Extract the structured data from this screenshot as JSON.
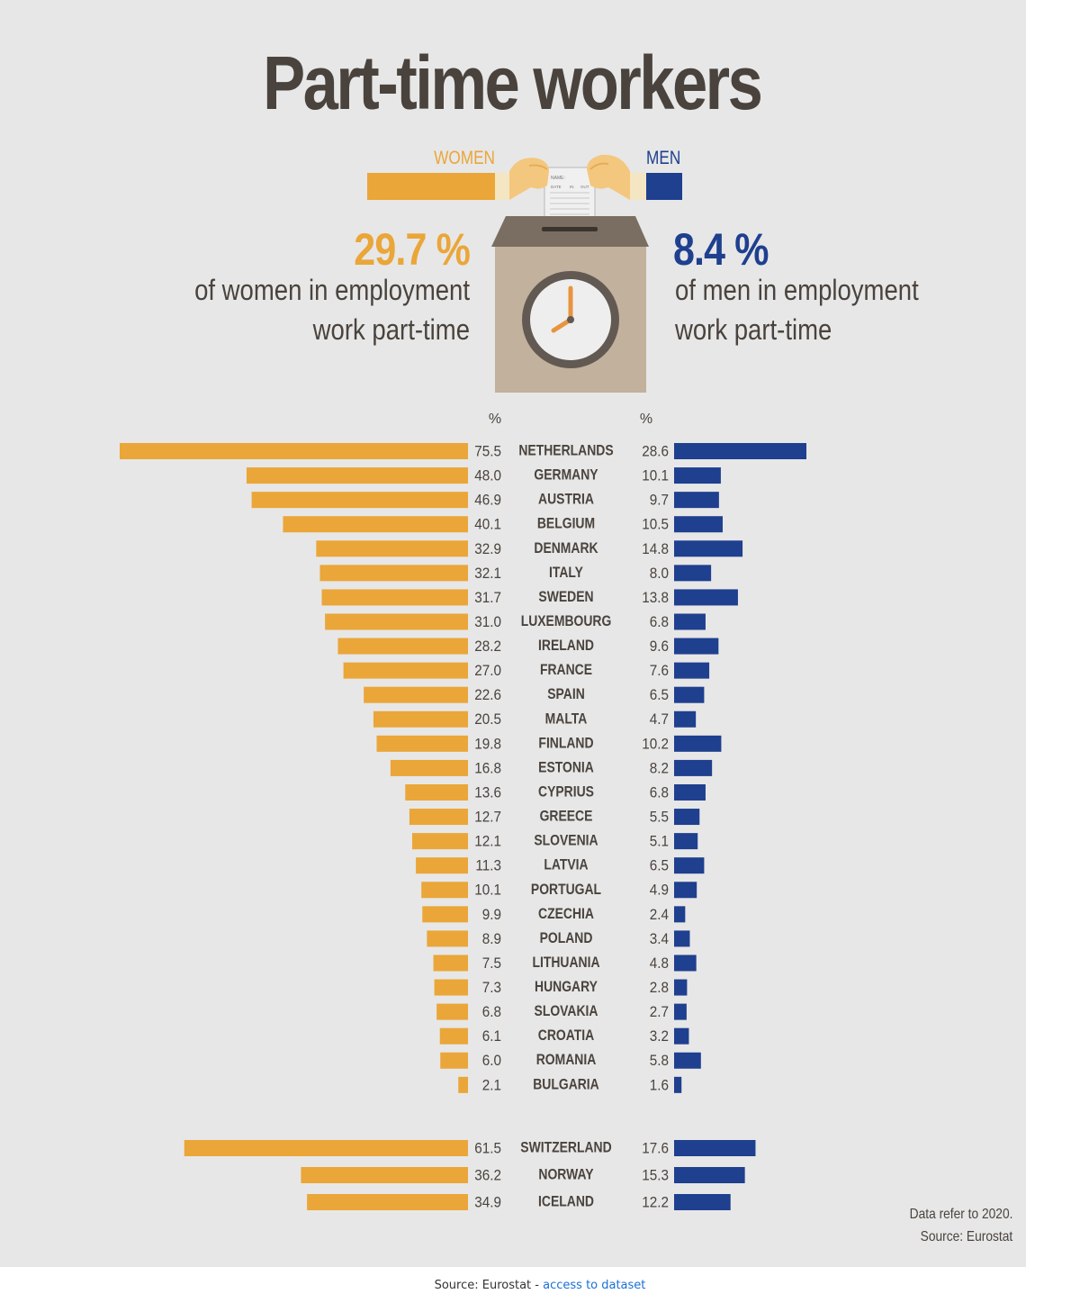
{
  "title": "Part-time workers",
  "legend": {
    "women": "WOMEN",
    "men": "MEN"
  },
  "women_summary": {
    "value": "29.7 %",
    "line1": "of women in employment",
    "line2": "work part-time"
  },
  "men_summary": {
    "value": "8.4 %",
    "line1": "of men in employment",
    "line2": "work part-time"
  },
  "unit_label": "%",
  "card": {
    "name_label": "NAME:",
    "date_label": "DATE",
    "in_label": "IN",
    "out_label": "OUT"
  },
  "colors": {
    "women": "#eaa638",
    "men": "#1f3f8f",
    "text": "#4a433d",
    "background": "#e7e7e7"
  },
  "notes": {
    "line1": "Data refer to 2020.",
    "line2": "Source: Eurostat"
  },
  "footer": {
    "source": "Source: Eurostat -",
    "link_text": "access to dataset"
  },
  "chart_data": {
    "type": "bar",
    "orientation": "horizontal-butterfly",
    "unit": "%",
    "series": [
      {
        "name": "WOMEN",
        "values": [
          75.5,
          48.0,
          46.9,
          40.1,
          32.9,
          32.1,
          31.7,
          31.0,
          28.2,
          27.0,
          22.6,
          20.5,
          19.8,
          16.8,
          13.6,
          12.7,
          12.1,
          11.3,
          10.1,
          9.9,
          8.9,
          7.5,
          7.3,
          6.8,
          6.1,
          6.0,
          2.1,
          61.5,
          36.2,
          34.9
        ]
      },
      {
        "name": "MEN",
        "values": [
          28.6,
          10.1,
          9.7,
          10.5,
          14.8,
          8.0,
          13.8,
          6.8,
          9.6,
          7.6,
          6.5,
          4.7,
          10.2,
          8.2,
          6.8,
          5.5,
          5.1,
          6.5,
          4.9,
          2.4,
          3.4,
          4.8,
          2.8,
          2.7,
          3.2,
          5.8,
          1.6,
          17.6,
          15.3,
          12.2
        ]
      }
    ],
    "women_labels": [
      "75.5",
      "48.0",
      "46.9",
      "40.1",
      "32.9",
      "32.1",
      "31.7",
      "31.0",
      "28.2",
      "27.0",
      "22.6",
      "20.5",
      "19.8",
      "16.8",
      "13.6",
      "12.7",
      "12.1",
      "11.3",
      "10.1",
      "9.9",
      "8.9",
      "7.5",
      "7.3",
      "6.8",
      "6.1",
      "6.0",
      "2.1",
      "61.5",
      "36.2",
      "34.9"
    ],
    "men_labels": [
      "28.6",
      "10.1",
      "9.7",
      "10.5",
      "14.8",
      "8.0",
      "13.8",
      "6.8",
      "9.6",
      "7.6",
      "6.5",
      "4.7",
      "10.2",
      "8.2",
      "6.8",
      "5.5",
      "5.1",
      "6.5",
      "4.9",
      "2.4",
      "3.4",
      "4.8",
      "2.8",
      "2.7",
      "3.2",
      "5.8",
      "1.6",
      "17.6",
      "15.3",
      "12.2"
    ],
    "groups": [
      {
        "categories": [
          "NETHERLANDS",
          "GERMANY",
          "AUSTRIA",
          "BELGIUM",
          "DENMARK",
          "ITALY",
          "SWEDEN",
          "LUXEMBOURG",
          "IRELAND",
          "FRANCE",
          "SPAIN",
          "MALTA",
          "FINLAND",
          "ESTONIA",
          "CYPRIUS",
          "GREECE",
          "SLOVENIA",
          "LATVIA",
          "PORTUGAL",
          "CZECHIA",
          "POLAND",
          "LITHUANIA",
          "HUNGARY",
          "SLOVAKIA",
          "CROATIA",
          "ROMANIA",
          "BULGARIA"
        ]
      },
      {
        "categories": [
          "SWITZERLAND",
          "NORWAY",
          "ICELAND"
        ]
      }
    ],
    "xlim": [
      0,
      80
    ]
  }
}
